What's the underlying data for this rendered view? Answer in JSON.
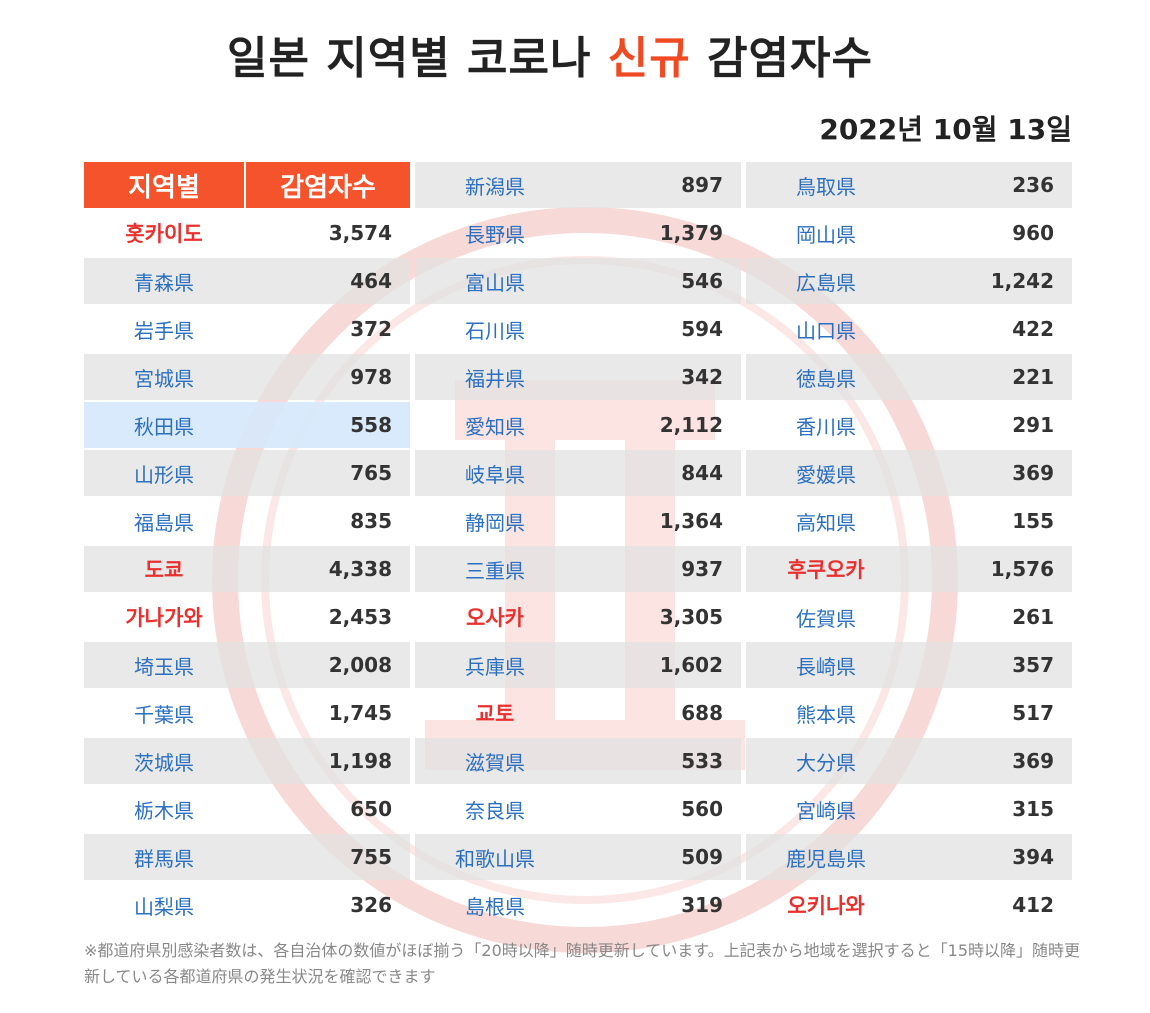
{
  "title": {
    "pre": "일본 지역별 코로나 ",
    "highlight": "신규",
    "post": " 감염자수"
  },
  "date": "2022년 10월 13일",
  "header": {
    "region": "지역별",
    "count": "감염자수"
  },
  "columns": [
    [
      {
        "name": "홋카이도",
        "value": "3,574",
        "kr": true
      },
      {
        "name": "青森県",
        "value": "464"
      },
      {
        "name": "岩手県",
        "value": "372"
      },
      {
        "name": "宮城県",
        "value": "978"
      },
      {
        "name": "秋田県",
        "value": "558",
        "selected": true
      },
      {
        "name": "山形県",
        "value": "765"
      },
      {
        "name": "福島県",
        "value": "835"
      },
      {
        "name": "도쿄",
        "value": "4,338",
        "kr": true
      },
      {
        "name": "가나가와",
        "value": "2,453",
        "kr": true
      },
      {
        "name": "埼玉県",
        "value": "2,008"
      },
      {
        "name": "千葉県",
        "value": "1,745"
      },
      {
        "name": "茨城県",
        "value": "1,198"
      },
      {
        "name": "栃木県",
        "value": "650"
      },
      {
        "name": "群馬県",
        "value": "755"
      },
      {
        "name": "山梨県",
        "value": "326"
      }
    ],
    [
      {
        "name": "新潟県",
        "value": "897"
      },
      {
        "name": "長野県",
        "value": "1,379"
      },
      {
        "name": "富山県",
        "value": "546"
      },
      {
        "name": "石川県",
        "value": "594"
      },
      {
        "name": "福井県",
        "value": "342"
      },
      {
        "name": "愛知県",
        "value": "2,112"
      },
      {
        "name": "岐阜県",
        "value": "844"
      },
      {
        "name": "静岡県",
        "value": "1,364"
      },
      {
        "name": "三重県",
        "value": "937"
      },
      {
        "name": "오사카",
        "value": "3,305",
        "kr": true
      },
      {
        "name": "兵庫県",
        "value": "1,602"
      },
      {
        "name": "교토",
        "value": "688",
        "kr": true
      },
      {
        "name": "滋賀県",
        "value": "533"
      },
      {
        "name": "奈良県",
        "value": "560"
      },
      {
        "name": "和歌山県",
        "value": "509"
      },
      {
        "name": "島根県",
        "value": "319"
      }
    ],
    [
      {
        "name": "鳥取県",
        "value": "236"
      },
      {
        "name": "岡山県",
        "value": "960"
      },
      {
        "name": "広島県",
        "value": "1,242"
      },
      {
        "name": "山口県",
        "value": "422"
      },
      {
        "name": "徳島県",
        "value": "221"
      },
      {
        "name": "香川県",
        "value": "291"
      },
      {
        "name": "愛媛県",
        "value": "369"
      },
      {
        "name": "高知県",
        "value": "155"
      },
      {
        "name": "후쿠오카",
        "value": "1,576",
        "kr": true
      },
      {
        "name": "佐賀県",
        "value": "261"
      },
      {
        "name": "長崎県",
        "value": "357"
      },
      {
        "name": "熊本県",
        "value": "517"
      },
      {
        "name": "大分県",
        "value": "369"
      },
      {
        "name": "宮崎県",
        "value": "315"
      },
      {
        "name": "鹿児島県",
        "value": "394"
      },
      {
        "name": "오키나와",
        "value": "412",
        "kr": true
      }
    ]
  ],
  "note": "※都道府県別感染者数は、各自治体の数値がほぼ揃う「20時以降」随時更新しています。上記表から地域を選択すると「15時以降」随時更新している各都道府県の発生状況を確認できます",
  "colors": {
    "accent": "#f4532b",
    "korean_label": "#e8312f",
    "prefecture_label": "#2a6fc0"
  }
}
